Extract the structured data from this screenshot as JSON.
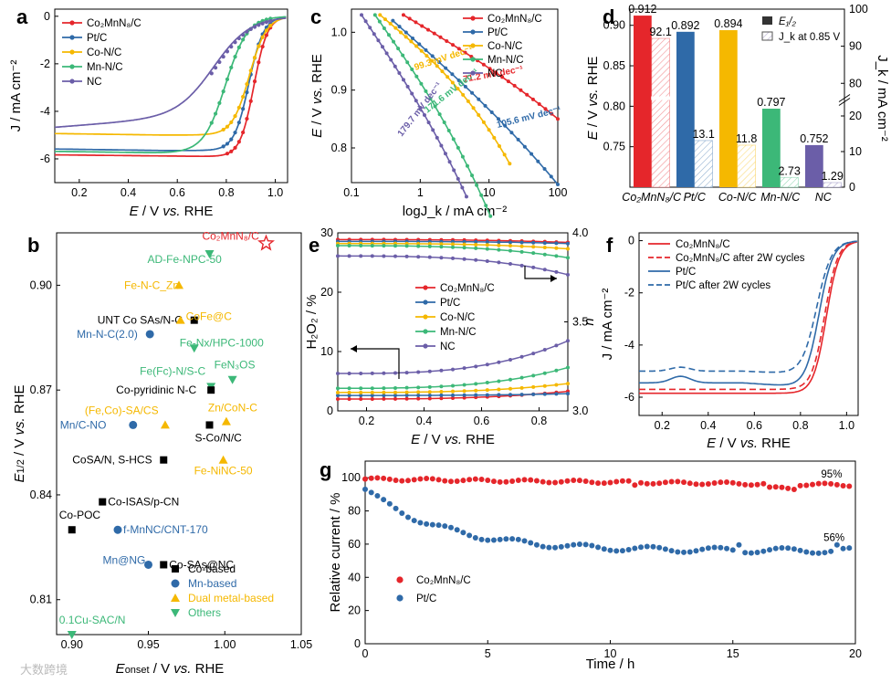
{
  "colors": {
    "co2mnn8": "#e5262b",
    "ptc": "#2f6aa8",
    "con": "#f5b800",
    "mnn": "#3cb878",
    "nc": "#6b5ea8",
    "black": "#000000"
  },
  "panels": {
    "a": "a",
    "b": "b",
    "c": "c",
    "d": "d",
    "e": "e",
    "f": "f",
    "g": "g"
  },
  "watermark": "大数跨境",
  "chart_data": [
    {
      "id": "a",
      "type": "line",
      "xlabel_parts": [
        "E",
        " / V ",
        "vs.",
        " RHE"
      ],
      "ylabel": "J / mA cm⁻²",
      "xlim": [
        0.1,
        1.05
      ],
      "ylim": [
        -7,
        0.3
      ],
      "xticks": [
        "0.2",
        "0.4",
        "0.6",
        "0.8",
        "1.0"
      ],
      "yticks": [
        "0",
        "-2",
        "-4",
        "-6"
      ],
      "legend": [
        "Co₂MnN₈/C",
        "Pt/C",
        "Co-N/C",
        "Mn-N/C",
        "NC"
      ],
      "series": [
        {
          "name": "Co₂MnN₈/C",
          "plateau": -5.9,
          "half": 0.912,
          "w": 0.028
        },
        {
          "name": "Pt/C",
          "plateau": -5.65,
          "half": 0.892,
          "w": 0.03
        },
        {
          "name": "Co-N/C",
          "plateau": -5.0,
          "half": 0.894,
          "w": 0.035
        },
        {
          "name": "Mn-N/C",
          "plateau": -5.75,
          "half": 0.797,
          "w": 0.045
        },
        {
          "name": "NC",
          "plateau": -4.45,
          "half": 0.752,
          "w": 0.075
        }
      ]
    },
    {
      "id": "b",
      "type": "scatter",
      "xlabel": "E_onset / V vs. RHE",
      "ylabel": "E_1/2 / V vs. RHE",
      "xlim": [
        0.89,
        1.05
      ],
      "ylim": [
        0.8,
        0.915
      ],
      "xticks": [
        "0.90",
        "0.95",
        "1.00",
        "1.05"
      ],
      "yticks": [
        "0.81",
        "0.84",
        "0.87",
        "0.90"
      ],
      "legend": [
        "Co-based",
        "Mn-based",
        "Dual metal-based",
        "Others"
      ],
      "points": [
        {
          "label": "Co₂MnN₈/C",
          "x": 1.027,
          "y": 0.912,
          "kind": "star"
        },
        {
          "label": "AD-Fe-NPC-50",
          "x": 0.99,
          "y": 0.909,
          "kind": "others"
        },
        {
          "label": "Fe-N-C_Zn",
          "x": 0.97,
          "y": 0.9,
          "kind": "dual"
        },
        {
          "label": "UNT Co SAs/N-C",
          "x": 0.98,
          "y": 0.89,
          "kind": "co"
        },
        {
          "label": "CoFe@C",
          "x": 0.971,
          "y": 0.89,
          "kind": "dual"
        },
        {
          "label": "Mn-N-C(2.0)",
          "x": 0.951,
          "y": 0.886,
          "kind": "mn"
        },
        {
          "label": "Fe-Nx/HPC-1000",
          "x": 0.98,
          "y": 0.882,
          "kind": "others"
        },
        {
          "label": "FeN₃OS",
          "x": 1.005,
          "y": 0.873,
          "kind": "others"
        },
        {
          "label": "Fe(Fc)-N/S-C",
          "x": 0.991,
          "y": 0.871,
          "kind": "others"
        },
        {
          "label": "Co-pyridinic N-C",
          "x": 0.991,
          "y": 0.87,
          "kind": "co"
        },
        {
          "label": "(Fe,Co)-SA/CS",
          "x": 0.961,
          "y": 0.86,
          "kind": "dual"
        },
        {
          "label": "Zn/CoN-C",
          "x": 1.001,
          "y": 0.861,
          "kind": "dual"
        },
        {
          "label": "Mn/C-NO",
          "x": 0.94,
          "y": 0.86,
          "kind": "mn"
        },
        {
          "label": "S-Co/N/C",
          "x": 0.99,
          "y": 0.86,
          "kind": "co"
        },
        {
          "label": "CoSA/N, S-HCS",
          "x": 0.96,
          "y": 0.85,
          "kind": "co"
        },
        {
          "label": "Fe-NiNC-50",
          "x": 0.999,
          "y": 0.85,
          "kind": "dual"
        },
        {
          "label": "Co-ISAS/p-CN",
          "x": 0.92,
          "y": 0.838,
          "kind": "co"
        },
        {
          "label": "Co-POC",
          "x": 0.9,
          "y": 0.83,
          "kind": "co"
        },
        {
          "label": "f-MnNC/CNT-170",
          "x": 0.93,
          "y": 0.83,
          "kind": "mn"
        },
        {
          "label": "Mn@NG",
          "x": 0.95,
          "y": 0.82,
          "kind": "mn"
        },
        {
          "label": "Co-SAs@NC",
          "x": 0.96,
          "y": 0.82,
          "kind": "co"
        },
        {
          "label": "0.1Cu-SAC/N",
          "x": 0.9,
          "y": 0.8,
          "kind": "others"
        }
      ]
    },
    {
      "id": "c",
      "type": "line",
      "xlabel": "logJ_k / mA cm⁻²",
      "ylabel_parts": [
        "E",
        " / V ",
        "vs.",
        " RHE"
      ],
      "xlog": [
        0.1,
        100
      ],
      "ylim": [
        0.74,
        1.04
      ],
      "xticks": [
        "0.1",
        "1",
        "10",
        "100"
      ],
      "yticks": [
        "0.8",
        "0.9",
        "1.0"
      ],
      "legend": [
        "Co₂MnN₈/C",
        "Pt/C",
        "Co-N/C",
        "Mn-N/C",
        "NC"
      ],
      "series": [
        {
          "name": "Co₂MnN₈/C",
          "start": [
            0.57,
            1.03
          ],
          "tafel": 71.2,
          "end": 100,
          "bend": 0.02
        },
        {
          "name": "Pt/C",
          "start": [
            0.4,
            1.02
          ],
          "tafel": 105.6,
          "end": 100,
          "bend": 0.03
        },
        {
          "name": "Co-N/C",
          "start": [
            0.26,
            1.03
          ],
          "tafel": 99.3,
          "end": 20,
          "bend": 0.07
        },
        {
          "name": "Mn-N/C",
          "start": [
            0.22,
            1.03
          ],
          "tafel": 171.6,
          "end": 10.5,
          "bend": 0.06
        },
        {
          "name": "NC",
          "start": [
            0.14,
            1.03
          ],
          "tafel": 179.7,
          "end": 4.7,
          "bend": 0.04
        }
      ],
      "annotations": [
        "71.2 mV dec⁻¹",
        "105.6 mV dec⁻¹",
        "99.3 mV dec⁻¹",
        "171.6 mV dec⁻¹",
        "179.7 mV dec⁻¹"
      ]
    },
    {
      "id": "d",
      "type": "bar",
      "ylabel_parts": [
        "E",
        " / V ",
        "vs.",
        " RHE"
      ],
      "y2label": "J_k / mA cm⁻²",
      "ylim": [
        0.7,
        0.92
      ],
      "yticks": [
        "0.75",
        "0.80",
        "0.85",
        "0.90"
      ],
      "y2ticks_low": [
        "0",
        "10",
        "20"
      ],
      "y2ticks_high": [
        "80",
        "90",
        "100"
      ],
      "categories": [
        "Co₂MnN₈/C",
        "Pt/C",
        "Co-N/C",
        "Mn-N/C",
        "NC"
      ],
      "e_half": [
        0.912,
        0.892,
        0.894,
        0.797,
        0.752
      ],
      "e_half_labels": [
        "0.912",
        "0.892",
        "0.894",
        "0.797",
        "0.752"
      ],
      "jk": [
        92.1,
        13.1,
        11.8,
        2.73,
        1.29
      ],
      "jk_labels": [
        "92.1",
        "13.1",
        "11.8",
        "2.73",
        "1.29"
      ],
      "legend": [
        "E₁/₂",
        "J_k at 0.85 V"
      ]
    },
    {
      "id": "e",
      "type": "line",
      "xlabel_parts": [
        "E",
        " / V ",
        "vs.",
        " RHE"
      ],
      "ylabel": "H₂O₂ / %",
      "y2label": "n",
      "xlim": [
        0.1,
        0.9
      ],
      "ylim": [
        0,
        30
      ],
      "y2lim": [
        3.0,
        4.0
      ],
      "xticks": [
        "0.2",
        "0.4",
        "0.6",
        "0.8"
      ],
      "yticks": [
        "0",
        "10",
        "20",
        "30"
      ],
      "y2ticks": [
        "3.0",
        "3.5",
        "4.0"
      ],
      "legend": [
        "Co₂MnN₈/C",
        "Pt/C",
        "Co-N/C",
        "Mn-N/C",
        "NC"
      ],
      "h2o2": [
        {
          "name": "Co₂MnN₈/C",
          "start": 2.0,
          "end": 3.3
        },
        {
          "name": "Pt/C",
          "start": 2.6,
          "end": 2.9
        },
        {
          "name": "Co-N/C",
          "start": 3.1,
          "end": 4.6
        },
        {
          "name": "Mn-N/C",
          "start": 3.8,
          "end": 7.3
        },
        {
          "name": "NC",
          "start": 6.3,
          "end": 11.8
        }
      ],
      "n": [
        {
          "name": "Co₂MnN₈/C",
          "start": 3.962,
          "end": 3.946
        },
        {
          "name": "Pt/C",
          "start": 3.952,
          "end": 3.94
        },
        {
          "name": "Co-N/C",
          "start": 3.94,
          "end": 3.91
        },
        {
          "name": "Mn-N/C",
          "start": 3.928,
          "end": 3.86
        },
        {
          "name": "NC",
          "start": 3.87,
          "end": 3.765
        }
      ]
    },
    {
      "id": "f",
      "type": "line",
      "xlabel_parts": [
        "E",
        " / V ",
        "vs.",
        " RHE"
      ],
      "ylabel": "J / mA cm⁻²",
      "xlim": [
        0.1,
        1.05
      ],
      "ylim": [
        -6.7,
        0.3
      ],
      "xticks": [
        "0.2",
        "0.4",
        "0.6",
        "0.8",
        "1.0"
      ],
      "yticks": [
        "0",
        "-2",
        "-4",
        "-6"
      ],
      "legend": [
        "Co₂MnN₈/C",
        "Co₂MnN₈/C after 2W cycles",
        "Pt/C",
        "Pt/C after 2W cycles"
      ]
    },
    {
      "id": "g",
      "type": "scatter",
      "xlabel": "Time / h",
      "ylabel": "Relative current / %",
      "xlim": [
        0,
        20
      ],
      "ylim": [
        0,
        110
      ],
      "xticks": [
        "0",
        "5",
        "10",
        "15",
        "20"
      ],
      "yticks": [
        "0",
        "20",
        "40",
        "60",
        "80",
        "100"
      ],
      "legend": [
        "Co₂MnN₈/C",
        "Pt/C"
      ],
      "series": [
        {
          "name": "Co₂MnN₈/C",
          "end_value": 95,
          "end_label": "95%"
        },
        {
          "name": "Pt/C",
          "end_value": 56,
          "end_label": "56%"
        }
      ]
    }
  ]
}
